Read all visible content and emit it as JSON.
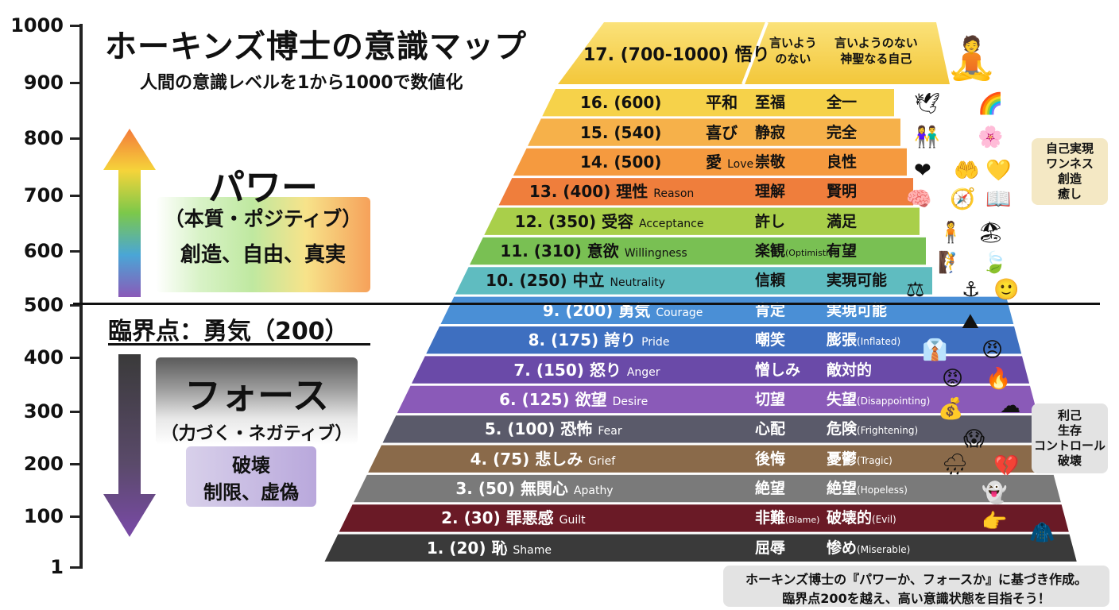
{
  "title": "ホーキンズ博士の意識マップ",
  "subtitle": "人間の意識レベルを1から1000で数値化",
  "axis": {
    "ticks": [
      "1000",
      "900",
      "800",
      "700",
      "600",
      "500",
      "400",
      "300",
      "200",
      "100",
      "1"
    ]
  },
  "power": {
    "title": "パワー",
    "sub": "（本質・ポジティブ）",
    "desc": "創造、自由、真実"
  },
  "threshold": "臨界点：勇気（200）",
  "force": {
    "title": "フォース",
    "sub": "（力づく・ネガティブ）",
    "desc1": "破壊",
    "desc2": "制限、虚偽"
  },
  "top_level": {
    "label": "17. (700-1000) 悟り",
    "c2": "言いよう\nのない",
    "c3": "言いようのない\n神聖なる自己"
  },
  "levels": [
    {
      "label": "16. (600)",
      "name": "平和",
      "en": "",
      "c2": "至福",
      "c2en": "",
      "c3": "全一",
      "c3en": "",
      "color": "#f6d24a"
    },
    {
      "label": "15. (540)",
      "name": "喜び",
      "en": "",
      "c2": "静寂",
      "c2en": "",
      "c3": "完全",
      "c3en": "",
      "color": "#f6b14a"
    },
    {
      "label": "14. (500)",
      "name": "愛",
      "en": "Love",
      "c2": "崇敬",
      "c2en": "",
      "c3": "良性",
      "c3en": "",
      "color": "#f59a3f"
    },
    {
      "label": "13. (400)",
      "name": "理性",
      "en": "Reason",
      "c2": "理解",
      "c2en": "",
      "c3": "賢明",
      "c3en": "",
      "color": "#ef7e3c"
    },
    {
      "label": "12. (350)",
      "name": "受容",
      "en": "Acceptance",
      "c2": "許し",
      "c2en": "",
      "c3": "満足",
      "c3en": "",
      "color": "#a9cf4a"
    },
    {
      "label": "11. (310)",
      "name": "意欲",
      "en": "Willingness",
      "c2": "楽観",
      "c2en": "(Optimistic)",
      "c3": "有望",
      "c3en": "",
      "color": "#79c053"
    },
    {
      "label": "10. (250)",
      "name": "中立",
      "en": "Neutrality",
      "c2": "信頼",
      "c2en": "",
      "c3": "実現可能",
      "c3en": "",
      "color": "#5fbcc0"
    },
    {
      "label": "9. (200)",
      "name": "勇気",
      "en": "Courage",
      "c2": "肯定",
      "c2en": "",
      "c3": "実現可能",
      "c3en": "",
      "color": "#4a8fd6"
    },
    {
      "label": "8. (175)",
      "name": "誇り",
      "en": "Pride",
      "c2": "嘲笑",
      "c2en": "",
      "c3": "膨張",
      "c3en": "(Inflated)",
      "color": "#3e6fc0"
    },
    {
      "label": "7. (150)",
      "name": "怒り",
      "en": "Anger",
      "c2": "憎しみ",
      "c2en": "",
      "c3": "敵対的",
      "c3en": "",
      "color": "#6a4aa8"
    },
    {
      "label": "6. (125)",
      "name": "欲望",
      "en": "Desire",
      "c2": "切望",
      "c2en": "",
      "c3": "失望",
      "c3en": "(Disappointing)",
      "color": "#8a5ab8"
    },
    {
      "label": "5. (100)",
      "name": "恐怖",
      "en": "Fear",
      "c2": "心配",
      "c2en": "",
      "c3": "危険",
      "c3en": "(Frightening)",
      "color": "#5a5a6a"
    },
    {
      "label": "4. (75)",
      "name": "悲しみ",
      "en": "Grief",
      "c2": "後悔",
      "c2en": "",
      "c3": "憂鬱",
      "c3en": "(Tragic)",
      "color": "#8a6a4a"
    },
    {
      "label": "3. (50)",
      "name": "無関心",
      "en": "Apathy",
      "c2": "絶望",
      "c2en": "",
      "c3": "絶望",
      "c3en": "(Hopeless)",
      "color": "#7a7a7a"
    },
    {
      "label": "2. (30)",
      "name": "罪悪感",
      "en": "Guilt",
      "c2": "非難",
      "c2en": "(Blame)",
      "c3": "破壊的",
      "c3en": "(Evil)",
      "color": "#6a1a26"
    },
    {
      "label": "1. (20)",
      "name": "恥",
      "en": "Shame",
      "c2": "屈辱",
      "c2en": "",
      "c3": "惨め",
      "c3en": "(Miserable)",
      "color": "#3a3a3a"
    }
  ],
  "side_top": [
    "自己実現",
    "ワンネス",
    "創造",
    "癒し"
  ],
  "side_bottom": [
    "利己",
    "生存",
    "コントロール",
    "破壊"
  ],
  "footer": [
    "ホーキンズ博士の『パワーか、フォースか』に基づき作成。",
    "臨界点200を越え、高い意識状態を目指そう！"
  ],
  "icons": [
    "meditation-icon",
    "dove-icon",
    "rainbow-icon",
    "couple-icon",
    "flowers-icon",
    "heart-icon",
    "hands-heart-icon",
    "glowing-heart-icon",
    "brain-icon",
    "compass-icon",
    "book-icon",
    "person-icon",
    "beach-icon",
    "climber-icon",
    "leaf-icon",
    "scales-icon",
    "anchor-icon",
    "face-icon",
    "mountain-sun-icon",
    "proud-man-icon",
    "angry-face-icon",
    "angry-man-icon",
    "fire-icon",
    "money-bag-icon",
    "cloud-icon",
    "fear-icon",
    "rain-cloud-icon",
    "broken-heart-icon",
    "ghost-icon",
    "blame-icon",
    "hooded-figure-icon"
  ]
}
